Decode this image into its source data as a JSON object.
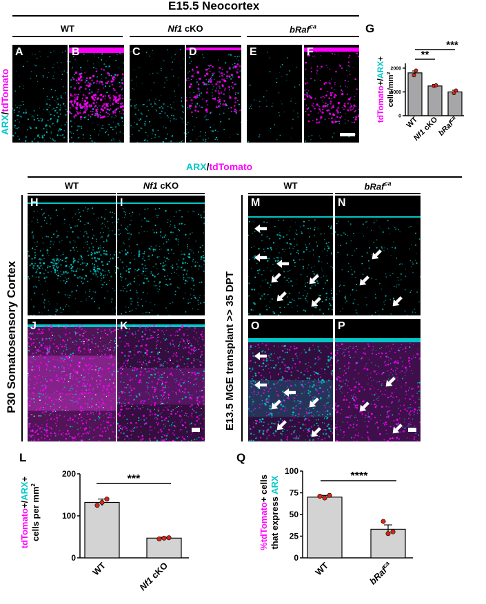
{
  "top_title": "E15.5 Neocortex",
  "top_headers": {
    "wt": "WT",
    "nf1": "Nf1",
    "nf1_suffix": " cKO",
    "braf": "bRaf",
    "braf_sup": "ca"
  },
  "top_panels": [
    "A",
    "B",
    "C",
    "D",
    "E",
    "F"
  ],
  "left_vlabel_top": {
    "arx": "ARX",
    "slash": "/",
    "td": "tdTomato"
  },
  "mid_header": {
    "arx": "ARX",
    "slash": "/",
    "td": "tdTomato"
  },
  "mid_subheaders": {
    "wt1": "WT",
    "nf1": "Nf1",
    "nf1_suffix": " cKO",
    "wt2": "WT",
    "braf": "bRaf",
    "braf_sup": "ca"
  },
  "mid_panels": [
    "H",
    "I",
    "J",
    "K",
    "M",
    "N",
    "O",
    "P"
  ],
  "vlabel_p30": "P30 Somatosensory Cortex",
  "vlabel_mge": "E13.5 MGE transplant >> 35 DPT",
  "panel_letters": {
    "g": "G",
    "l": "L",
    "q": "Q"
  },
  "chart_g": {
    "type": "bar",
    "categories": [
      "WT",
      "Nf1 cKO",
      "bRafca"
    ],
    "values": [
      1800,
      1250,
      1000
    ],
    "errors": [
      80,
      60,
      70
    ],
    "points": [
      [
        1700,
        1900
      ],
      [
        1250,
        1280
      ],
      [
        950,
        1060
      ]
    ],
    "ylim": [
      0,
      2200
    ],
    "yticks": [
      0,
      1000,
      2000
    ],
    "ylabel_parts": {
      "td": "tdTomato",
      "plus": "+/",
      "arx": "ARX",
      "plus2": "+",
      "units": "cells/mm",
      "sup": "2"
    },
    "sig": [
      "**",
      "***"
    ],
    "cat_labels": {
      "wt": "WT",
      "nf1": "Nf1",
      "nf1_suffix": " cKO",
      "braf": "bRaf",
      "braf_sup": "ca"
    }
  },
  "chart_l": {
    "type": "bar",
    "categories": [
      "WT",
      "Nf1 cKO"
    ],
    "values": [
      132,
      47
    ],
    "errors": [
      8,
      2
    ],
    "points": [
      [
        125,
        132,
        140
      ],
      [
        45,
        47,
        48
      ]
    ],
    "ylim": [
      0,
      200
    ],
    "yticks": [
      0,
      100,
      200
    ],
    "ylabel_parts": {
      "td": "tdTomato",
      "plus": "+/",
      "arx": "ARX",
      "plus2": "+",
      "line2": "cells per mm",
      "sup": "2"
    },
    "sig": "***",
    "cat_labels": {
      "wt": "WT",
      "nf1": "Nf1",
      "nf1_suffix": " cKO"
    }
  },
  "chart_q": {
    "type": "bar",
    "categories": [
      "WT",
      "bRafca"
    ],
    "values": [
      70,
      33
    ],
    "errors": [
      2,
      5
    ],
    "points": [
      [
        71,
        69,
        72
      ],
      [
        42,
        28,
        30
      ]
    ],
    "ylim": [
      0,
      100
    ],
    "yticks": [
      0,
      25,
      50,
      75,
      100
    ],
    "ylabel_parts": {
      "pct": "%",
      "td": "tdTomato",
      "plus": "+ cells",
      "line2a": "that express ",
      "arx": "ARX"
    },
    "sig": "****",
    "cat_labels": {
      "wt": "WT",
      "braf": "bRaf",
      "braf_sup": "ca"
    }
  },
  "colors": {
    "magenta": "#ff00ff",
    "cyan": "#00c8c8",
    "bar": "#d3d3d3",
    "bar_g": "#a6a6a8",
    "dot": "#d62718"
  }
}
